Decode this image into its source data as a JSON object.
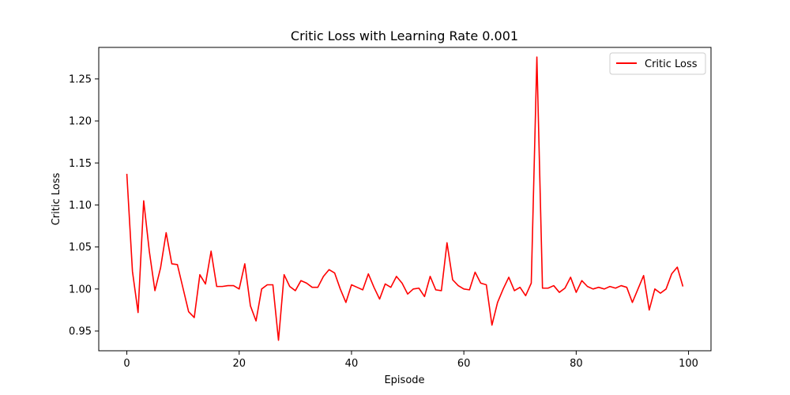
{
  "chart_data": {
    "type": "line",
    "title": "Critic Loss with Learning Rate 0.001",
    "xlabel": "Episode",
    "ylabel": "Critic Loss",
    "xlim": [
      -5,
      104
    ],
    "ylim": [
      0.9265,
      1.2875
    ],
    "xticks": [
      0,
      20,
      40,
      60,
      80,
      100
    ],
    "yticks": [
      0.95,
      1.0,
      1.05,
      1.1,
      1.15,
      1.2,
      1.25
    ],
    "ytick_labels": [
      "0.95",
      "1.00",
      "1.05",
      "1.10",
      "1.15",
      "1.20",
      "1.25"
    ],
    "grid": false,
    "legend_position": "top-right",
    "series": [
      {
        "name": "Critic Loss",
        "color": "#ff0000",
        "x": [
          0,
          1,
          2,
          3,
          4,
          5,
          6,
          7,
          8,
          9,
          10,
          11,
          12,
          13,
          14,
          15,
          16,
          17,
          18,
          19,
          20,
          21,
          22,
          23,
          24,
          25,
          26,
          27,
          28,
          29,
          30,
          31,
          32,
          33,
          34,
          35,
          36,
          37,
          38,
          39,
          40,
          41,
          42,
          43,
          44,
          45,
          46,
          47,
          48,
          49,
          50,
          51,
          52,
          53,
          54,
          55,
          56,
          57,
          58,
          59,
          60,
          61,
          62,
          63,
          64,
          65,
          66,
          67,
          68,
          69,
          70,
          71,
          72,
          73,
          74,
          75,
          76,
          77,
          78,
          79,
          80,
          81,
          82,
          83,
          84,
          85,
          86,
          87,
          88,
          89,
          90,
          91,
          92,
          93,
          94,
          95,
          96,
          97,
          98,
          99
        ],
        "y": [
          1.137,
          1.021,
          0.972,
          1.105,
          1.045,
          0.998,
          1.025,
          1.067,
          1.03,
          1.029,
          1.001,
          0.973,
          0.966,
          1.017,
          1.006,
          1.045,
          1.003,
          1.003,
          1.004,
          1.004,
          1.0,
          1.03,
          0.98,
          0.962,
          1.0,
          1.005,
          1.005,
          0.939,
          1.017,
          1.003,
          0.998,
          1.01,
          1.007,
          1.002,
          1.002,
          1.015,
          1.023,
          1.019,
          1.0,
          0.984,
          1.005,
          1.002,
          0.999,
          1.018,
          1.002,
          0.988,
          1.006,
          1.002,
          1.015,
          1.007,
          0.994,
          1.0,
          1.001,
          0.991,
          1.015,
          0.999,
          0.998,
          1.055,
          1.011,
          1.004,
          1.0,
          0.999,
          1.02,
          1.007,
          1.005,
          0.957,
          0.984,
          1.0,
          1.014,
          0.998,
          1.002,
          0.992,
          1.007,
          1.276,
          1.001,
          1.001,
          1.004,
          0.996,
          1.001,
          1.014,
          0.996,
          1.01,
          1.003,
          1.0,
          1.002,
          1.0,
          1.003,
          1.001,
          1.004,
          1.002,
          0.984,
          1.0,
          1.016,
          0.975,
          1.0,
          0.995,
          1.0,
          1.018,
          1.026,
          1.003
        ]
      }
    ]
  }
}
